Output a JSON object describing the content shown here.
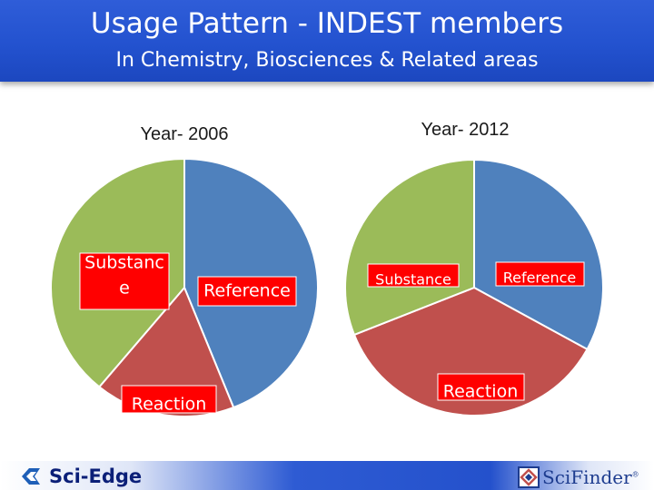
{
  "header": {
    "title": "Usage Pattern - INDEST members",
    "subtitle": "In Chemistry, Biosciences & Related areas"
  },
  "colors": {
    "header": "#2352cf",
    "reference": "#4f81bd",
    "reaction": "#c0504d",
    "substance": "#9bbb59",
    "label_highlight": "#ff0000"
  },
  "chart_data": [
    {
      "type": "pie",
      "title": "Year- 2006",
      "labels": [
        "Reference",
        "Reaction",
        "Substance"
      ],
      "values": [
        44,
        17,
        39
      ],
      "colors": [
        "#4f81bd",
        "#c0504d",
        "#9bbb59"
      ],
      "slice_label_lines": [
        [
          "Reference"
        ],
        [
          "Reaction"
        ],
        [
          "Substanc",
          "e"
        ]
      ],
      "highlighted_labels": true
    },
    {
      "type": "pie",
      "title": "Year- 2012",
      "labels": [
        "Reference",
        "Reaction",
        "Substance"
      ],
      "values": [
        33,
        36,
        31
      ],
      "colors": [
        "#4f81bd",
        "#c0504d",
        "#9bbb59"
      ],
      "slice_label_lines": [
        [
          "Reference"
        ],
        [
          "Reaction"
        ],
        [
          "Substance"
        ]
      ],
      "highlighted_labels": true
    }
  ],
  "footer": {
    "logo_left": "Sci-Edge",
    "logo_right": "SciFinder",
    "logo_right_mark": "®",
    "logo_left_icon": "sci-edge-logo-icon",
    "logo_right_icon": "scifinder-logo-icon"
  }
}
